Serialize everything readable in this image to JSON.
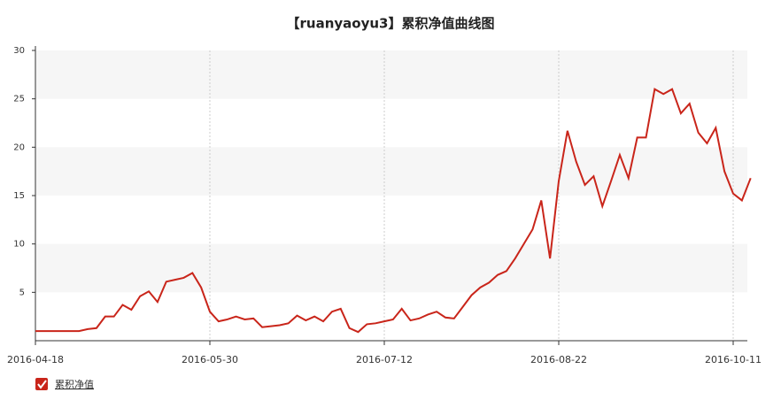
{
  "chart_data": {
    "type": "line",
    "title": "【ruanyaoyu3】累积净值曲线图",
    "categories": [
      "2016-04-18",
      null,
      null,
      null,
      null,
      null,
      null,
      null,
      null,
      null,
      null,
      null,
      null,
      null,
      null,
      null,
      null,
      null,
      null,
      null,
      "2016-05-30",
      null,
      null,
      null,
      null,
      null,
      null,
      null,
      null,
      null,
      null,
      null,
      null,
      null,
      null,
      null,
      null,
      null,
      null,
      null,
      "2016-07-12",
      null,
      null,
      null,
      null,
      null,
      null,
      null,
      null,
      null,
      null,
      null,
      null,
      null,
      null,
      null,
      null,
      null,
      null,
      null,
      "2016-08-22",
      null,
      null,
      null,
      null,
      null,
      null,
      null,
      null,
      null,
      null,
      null,
      null,
      null,
      null,
      null,
      null,
      null,
      null,
      null,
      "2016-10-11",
      null,
      null
    ],
    "series": [
      {
        "name": "累积净值",
        "color": "#c9251a",
        "values": [
          1.0,
          1.0,
          1.0,
          1.0,
          1.0,
          1.0,
          1.2,
          1.3,
          2.5,
          2.5,
          3.7,
          3.2,
          4.6,
          5.1,
          4.0,
          6.1,
          6.3,
          6.5,
          7.0,
          5.5,
          3.0,
          2.0,
          2.2,
          2.5,
          2.2,
          2.3,
          1.4,
          1.5,
          1.6,
          1.8,
          2.6,
          2.1,
          2.5,
          2.0,
          3.0,
          3.3,
          1.3,
          0.9,
          1.7,
          1.8,
          2.0,
          2.2,
          3.3,
          2.1,
          2.3,
          2.7,
          3.0,
          2.4,
          2.3,
          3.5,
          4.7,
          5.5,
          6.0,
          6.8,
          7.2,
          8.5,
          10.0,
          11.5,
          14.5,
          8.5,
          16.5,
          21.7,
          18.5,
          16.1,
          17.0,
          13.9,
          16.5,
          19.2,
          16.8,
          21.0,
          21.0,
          26.0,
          25.5,
          26.0,
          23.5,
          24.5,
          21.5,
          20.4,
          22.0,
          17.5,
          15.2,
          14.5,
          16.8
        ]
      }
    ],
    "ylim": [
      0,
      30
    ],
    "yticks": [
      5,
      10,
      15,
      20,
      25,
      30
    ],
    "grid": true
  }
}
